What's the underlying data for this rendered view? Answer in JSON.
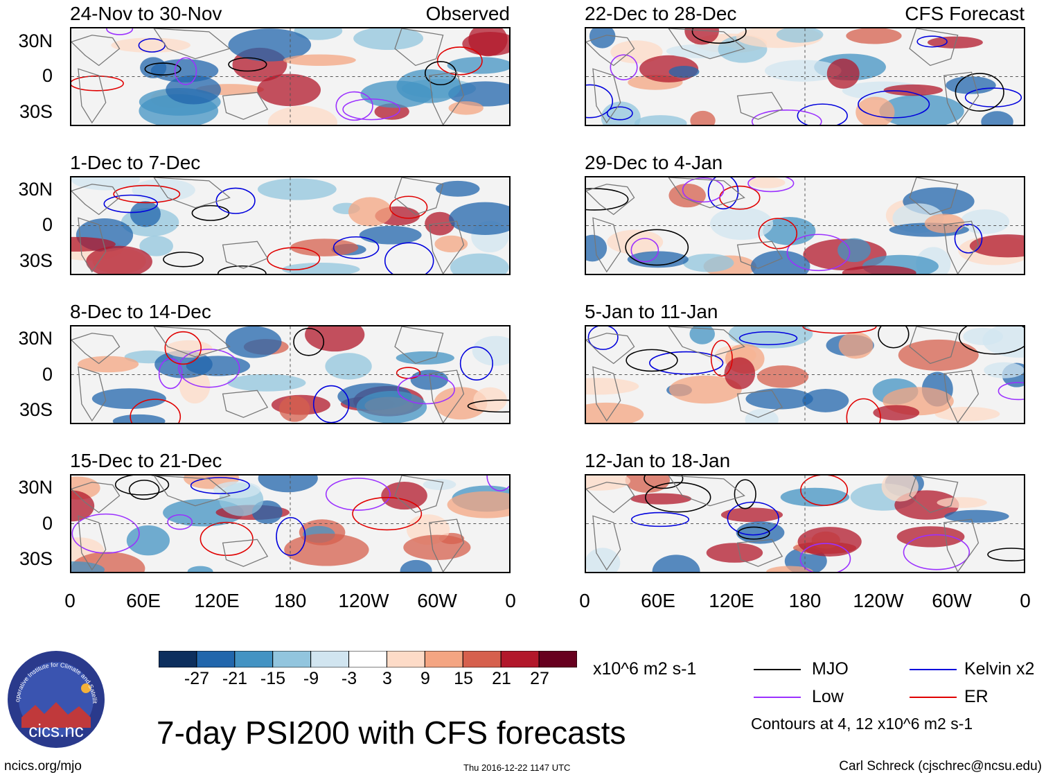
{
  "title": "7-day PSI200 with CFS forecasts",
  "logo": {
    "name": "cics.nc",
    "ring_text": "Cooperative Institute for Climate and Satellites"
  },
  "labels": {
    "observed": "Observed",
    "forecast": "CFS Forecast"
  },
  "chart_data": {
    "type": "heatmap",
    "variable": "7-day PSI200",
    "units": "x10^6 m2 s-1",
    "x_ticks": [
      "0",
      "60E",
      "120E",
      "180",
      "120W",
      "60W",
      "0"
    ],
    "y_ticks": [
      "30N",
      "0",
      "30S"
    ],
    "lat_range": [
      -40,
      40
    ],
    "lon_range": [
      0,
      360
    ],
    "panels": [
      {
        "period": "24-Nov to 30-Nov",
        "kind": "Observed",
        "column": "left",
        "row": 0
      },
      {
        "period": "1-Dec to 7-Dec",
        "kind": "Observed",
        "column": "left",
        "row": 1
      },
      {
        "period": "8-Dec to 14-Dec",
        "kind": "Observed",
        "column": "left",
        "row": 2
      },
      {
        "period": "15-Dec to 21-Dec",
        "kind": "Observed",
        "column": "left",
        "row": 3
      },
      {
        "period": "22-Dec to 28-Dec",
        "kind": "CFS Forecast",
        "column": "right",
        "row": 0
      },
      {
        "period": "29-Dec to 4-Jan",
        "kind": "CFS Forecast",
        "column": "right",
        "row": 1
      },
      {
        "period": "5-Jan to 11-Jan",
        "kind": "CFS Forecast",
        "column": "right",
        "row": 2
      },
      {
        "period": "12-Jan to 18-Jan",
        "kind": "CFS Forecast",
        "column": "right",
        "row": 3
      }
    ],
    "colorbar": {
      "levels": [
        "-27",
        "-21",
        "-15",
        "-9",
        "-3",
        "3",
        "9",
        "15",
        "21",
        "27"
      ],
      "colors": [
        "#0d2f5e",
        "#2166ac",
        "#4393c3",
        "#92c5de",
        "#d1e5f0",
        "#ffffff",
        "#fddbc7",
        "#f4a582",
        "#d6604d",
        "#b2182b",
        "#67001f"
      ],
      "units": "x10^6 m2 s-1"
    },
    "contour_legend": [
      {
        "name": "MJO",
        "color": "#000000"
      },
      {
        "name": "Kelvin x2",
        "color": "#0000dd"
      },
      {
        "name": "Low",
        "color": "#9b30ff"
      },
      {
        "name": "ER",
        "color": "#e00000"
      }
    ],
    "contour_note": "Contours at 4, 12 x10^6 m2 s-1"
  },
  "footer": {
    "left": "ncics.org/mjo",
    "center": "Thu 2016-12-22 1147 UTC",
    "right": "Carl Schreck (cjschrec@ncsu.edu)"
  }
}
